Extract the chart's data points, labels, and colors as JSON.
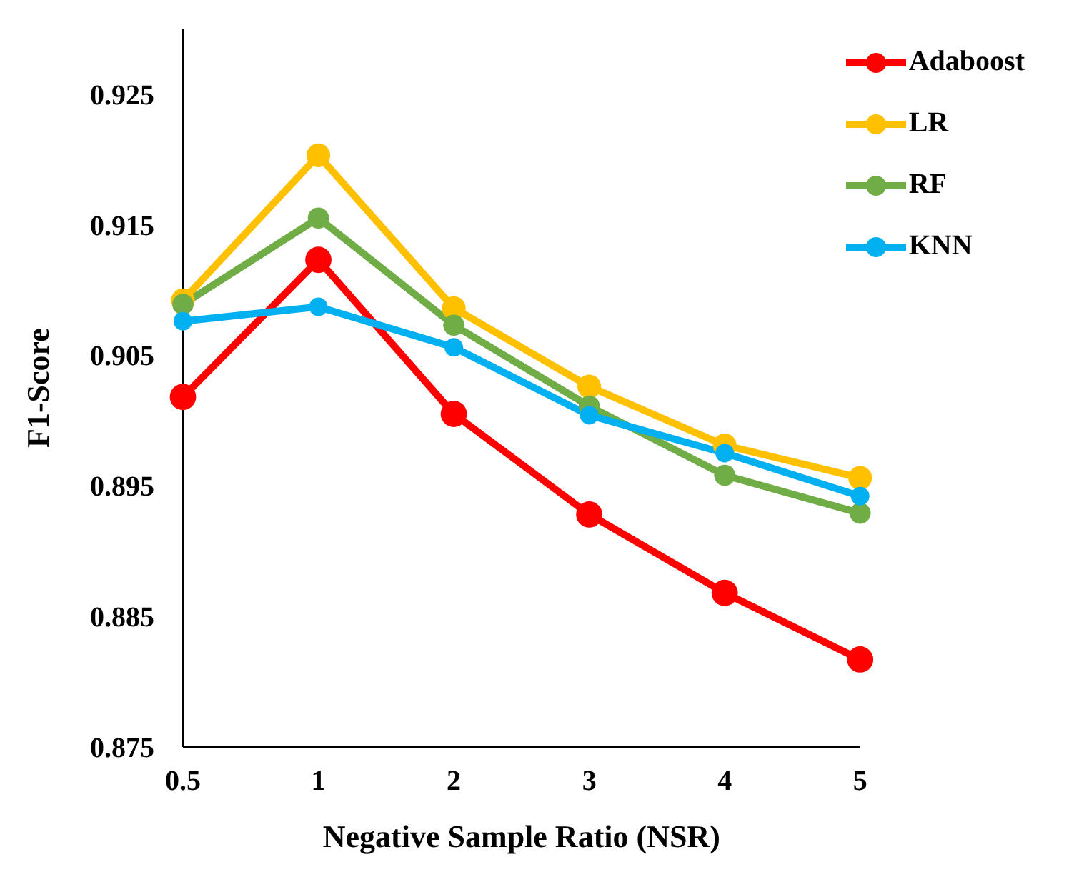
{
  "chart_data": {
    "type": "line",
    "xlabel": "Negative Sample Ratio (NSR)",
    "ylabel": "F1-Score",
    "categories": [
      "0.5",
      "1",
      "2",
      "3",
      "4",
      "5"
    ],
    "series": [
      {
        "name": "Adaboost",
        "color": "#ff0000",
        "values": [
          0.9018,
          0.9123,
          0.9005,
          0.8928,
          0.8868,
          0.8817
        ]
      },
      {
        "name": "LR",
        "color": "#ffc000",
        "values": [
          0.9092,
          0.9203,
          0.9086,
          0.9026,
          0.8981,
          0.8956
        ]
      },
      {
        "name": "RF",
        "color": "#70ad47",
        "values": [
          0.9089,
          0.9155,
          0.9073,
          0.9011,
          0.8958,
          0.8929
        ]
      },
      {
        "name": "KNN",
        "color": "#00b0f0",
        "values": [
          0.9076,
          0.9087,
          0.9056,
          0.9004,
          0.8975,
          0.8942
        ]
      }
    ],
    "ylim": [
      0.875,
      0.93
    ],
    "yticks": [
      0.875,
      0.885,
      0.895,
      0.905,
      0.915,
      0.925
    ],
    "grid": false,
    "legend": "top right",
    "marker": "circle",
    "line_style": "solid"
  }
}
